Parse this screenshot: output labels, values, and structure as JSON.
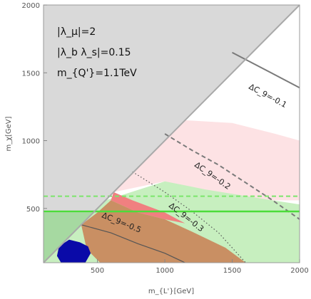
{
  "chart_data": {
    "type": "area",
    "xlabel": "m_{L'}[GeV]",
    "ylabel": "m_χ[GeV]",
    "xlim": [
      100,
      2000
    ],
    "ylim": [
      100,
      2000
    ],
    "xticks": [
      500,
      1000,
      1500,
      2000
    ],
    "yticks": [
      500,
      1000,
      1500,
      2000
    ],
    "grid": false,
    "annotations": [
      "|λ_μ|=2",
      "|λ_b λ_s|=0.15",
      "m_{Q'}=1.1TeV"
    ],
    "colors": {
      "excluded_gray": "#d9d9d9",
      "pink_light": "#fde2e4",
      "green_light": "#c7efbf",
      "green_mid": "#a6d9a1",
      "red": "#f08080",
      "brown": "#c98f63",
      "navy": "#0a0aa8",
      "bright_green_line": "#4cdc3a",
      "dashed_green_line": "#7be56b",
      "contour_gray": "#7a7a7a",
      "contour_dark": "#555555",
      "diagonal": "#a9a9a9"
    },
    "regions": [
      {
        "name": "kinematically-excluded",
        "color_key": "excluded_gray",
        "points": [
          [
            100,
            100
          ],
          [
            100,
            2000
          ],
          [
            2000,
            2000
          ]
        ]
      },
      {
        "name": "pink-band",
        "color_key": "pink_light",
        "points": [
          [
            950,
            950
          ],
          [
            1150,
            1150
          ],
          [
            1500,
            1130
          ],
          [
            1820,
            1050
          ],
          [
            2000,
            1000
          ],
          [
            2000,
            560
          ],
          [
            1600,
            560
          ],
          [
            1200,
            640
          ],
          [
            1000,
            700
          ],
          [
            620,
            620
          ]
        ]
      },
      {
        "name": "light-green-band",
        "color_key": "green_light",
        "points": [
          [
            560,
            560
          ],
          [
            1000,
            700
          ],
          [
            1300,
            640
          ],
          [
            1800,
            560
          ],
          [
            2000,
            530
          ],
          [
            2000,
            100
          ],
          [
            100,
            100
          ],
          [
            100,
            470
          ],
          [
            470,
            470
          ]
        ]
      },
      {
        "name": "mid-green-corner",
        "color_key": "green_mid",
        "points": [
          [
            100,
            100
          ],
          [
            100,
            470
          ],
          [
            470,
            470
          ],
          [
            300,
            300
          ]
        ]
      },
      {
        "name": "red-region",
        "color_key": "red",
        "points": [
          [
            620,
            620
          ],
          [
            760,
            560
          ],
          [
            1000,
            470
          ],
          [
            1150,
            390
          ],
          [
            1000,
            420
          ],
          [
            800,
            470
          ],
          [
            600,
            560
          ]
        ]
      },
      {
        "name": "brown-region",
        "color_key": "brown",
        "points": [
          [
            380,
            380
          ],
          [
            500,
            470
          ],
          [
            600,
            560
          ],
          [
            800,
            470
          ],
          [
            1000,
            420
          ],
          [
            1200,
            330
          ],
          [
            1450,
            210
          ],
          [
            1600,
            100
          ],
          [
            520,
            100
          ],
          [
            420,
            200
          ]
        ]
      },
      {
        "name": "navy-blob",
        "color_key": "navy",
        "points": [
          [
            230,
            100
          ],
          [
            200,
            150
          ],
          [
            215,
            220
          ],
          [
            290,
            270
          ],
          [
            370,
            250
          ],
          [
            430,
            220
          ],
          [
            450,
            170
          ],
          [
            410,
            100
          ]
        ]
      }
    ],
    "series": [
      {
        "name": "ΔC_9=-0.1",
        "style": "solid",
        "color_key": "contour_gray",
        "x": [
          1500,
          2000
        ],
        "y": [
          1650,
          1390
        ]
      },
      {
        "name": "ΔC_9=-0.2",
        "style": "dashed",
        "color_key": "contour_gray",
        "x": [
          1000,
          1200,
          1400,
          1600,
          1800,
          2000
        ],
        "y": [
          1050,
          930,
          820,
          690,
          560,
          420
        ]
      },
      {
        "name": "ΔC_9=-0.3",
        "style": "dotted",
        "color_key": "contour_dark",
        "x": [
          760,
          1000,
          1200,
          1400,
          1600
        ],
        "y": [
          770,
          620,
          480,
          320,
          100
        ]
      },
      {
        "name": "ΔC_9=-0.5",
        "style": "solid",
        "color_key": "contour_dark",
        "x": [
          380,
          600,
          800,
          1000,
          1150
        ],
        "y": [
          380,
          320,
          240,
          170,
          100
        ]
      },
      {
        "name": "",
        "style": "solid",
        "color_key": "bright_green_line",
        "x": [
          100,
          2000
        ],
        "y": [
          478,
          478
        ]
      },
      {
        "name": "",
        "style": "dashed",
        "color_key": "dashed_green_line",
        "x": [
          100,
          2000
        ],
        "y": [
          590,
          590
        ]
      },
      {
        "name": "",
        "style": "solid",
        "color_key": "diagonal",
        "x": [
          100,
          2000
        ],
        "y": [
          100,
          2000
        ]
      }
    ]
  }
}
